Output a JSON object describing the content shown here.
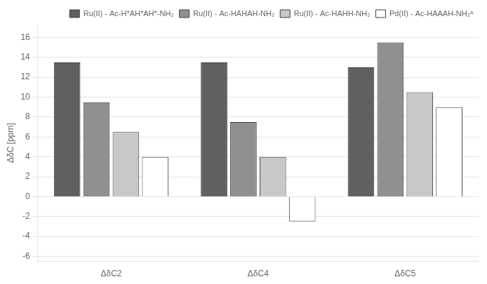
{
  "chart_data": {
    "type": "bar",
    "categories": [
      "ΔδC2",
      "ΔδC4",
      "ΔδC5"
    ],
    "series": [
      {
        "name": "Ru(II) - Ac-H*AH*AH*-NH₂",
        "color": "#606060",
        "values": [
          13.5,
          13.5,
          13.0
        ]
      },
      {
        "name": "Ru(II) - Ac-HAHAH-NH₂",
        "color": "#909090",
        "values": [
          9.5,
          7.5,
          15.5
        ]
      },
      {
        "name": "Ru(II) - Ac-HAHH-NH₂",
        "color": "#c8c8c8",
        "values": [
          6.5,
          4.0,
          10.5
        ]
      },
      {
        "name": "Pd(II) - Ac-HAAAH-NH₂ᵃ",
        "color": "#ffffff",
        "values": [
          4.0,
          -2.5,
          9.0
        ]
      }
    ],
    "y_label": "ΔδC [ppm]",
    "ylim": [
      -6.5,
      17.3
    ],
    "yticks": [
      -6,
      -4,
      -2,
      0,
      2,
      4,
      6,
      8,
      10,
      12,
      14,
      16
    ],
    "grid": true,
    "legend": "upper right"
  }
}
